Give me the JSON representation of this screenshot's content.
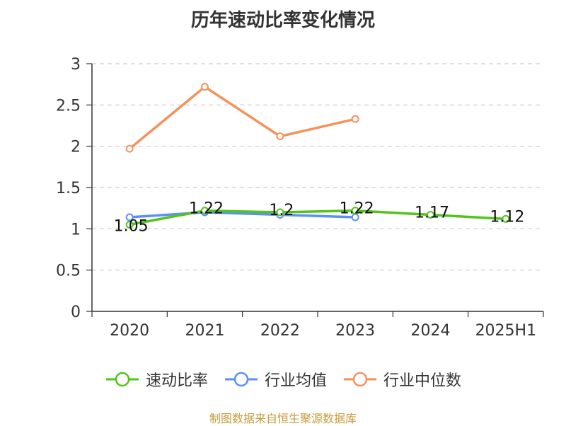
{
  "chart_data": {
    "type": "line",
    "title": "历年速动比率变化情况",
    "categories": [
      "2020",
      "2021",
      "2022",
      "2023",
      "2024",
      "2025H1"
    ],
    "ylim": [
      0,
      3
    ],
    "yticks": [
      "0",
      "0.5",
      "1",
      "1.5",
      "2",
      "2.5",
      "3"
    ],
    "grid": true,
    "legend_position": "bottom",
    "series": [
      {
        "name": "速动比率",
        "color": "#52c41a",
        "values": [
          1.05,
          1.22,
          1.2,
          1.22,
          1.17,
          1.12
        ],
        "labels": [
          "1.05",
          "1.22",
          "1.2",
          "1.22",
          "1.17",
          "1.12"
        ]
      },
      {
        "name": "行业均值",
        "color": "#5b8ff9",
        "values": [
          1.14,
          1.2,
          1.17,
          1.14,
          null,
          null
        ]
      },
      {
        "name": "行业中位数",
        "color": "#f6915a",
        "values": [
          1.97,
          2.72,
          2.12,
          2.33,
          null,
          null
        ]
      }
    ]
  },
  "source_note": "制图数据来自恒生聚源数据库"
}
